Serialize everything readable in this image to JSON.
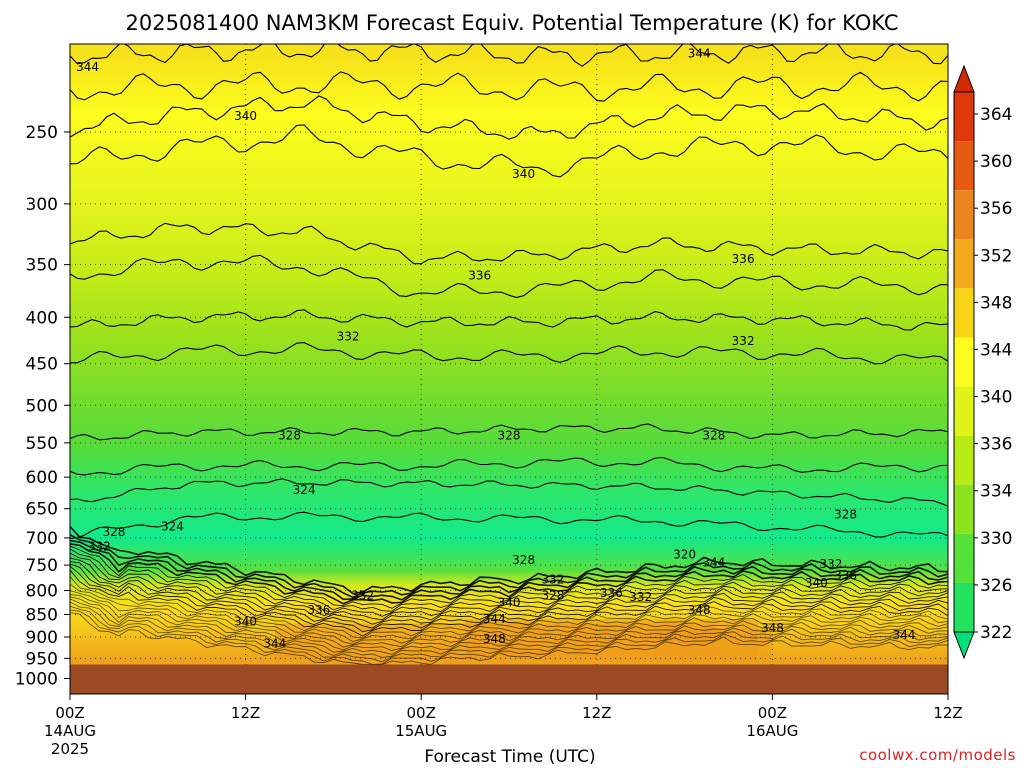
{
  "chart_data": {
    "type": "contour",
    "title": "2025081400 NAM3KM Forecast Equiv. Potential Temperature (K) for KOKC",
    "xlabel": "Forecast Time (UTC)",
    "ylabel": "",
    "x_ticks": [
      {
        "hour": 0,
        "label": "00Z",
        "sub": "14AUG",
        "sub2": "2025"
      },
      {
        "hour": 12,
        "label": "12Z",
        "sub": "",
        "sub2": ""
      },
      {
        "hour": 24,
        "label": "00Z",
        "sub": "15AUG",
        "sub2": ""
      },
      {
        "hour": 36,
        "label": "12Z",
        "sub": "",
        "sub2": ""
      },
      {
        "hour": 48,
        "label": "00Z",
        "sub": "16AUG",
        "sub2": ""
      },
      {
        "hour": 60,
        "label": "12Z",
        "sub": "",
        "sub2": ""
      }
    ],
    "xlim": [
      0,
      60
    ],
    "y_ticks": [
      250,
      300,
      350,
      400,
      450,
      500,
      550,
      600,
      650,
      700,
      750,
      800,
      850,
      900,
      950,
      1000
    ],
    "ylim": [
      1040,
      200
    ],
    "y_scale": "log-pressure",
    "colorbar": {
      "ticks": [
        322,
        326,
        330,
        334,
        336,
        340,
        344,
        348,
        352,
        356,
        360,
        364
      ],
      "colors": [
        "#00e07a",
        "#22e25e",
        "#56e03a",
        "#8de21e",
        "#b8ea14",
        "#dff21a",
        "#fdfd1e",
        "#f8d416",
        "#f2aa1c",
        "#ec8420",
        "#e65a12",
        "#e0380a",
        "#d42a00"
      ]
    },
    "contours": [
      {
        "level": 344,
        "pressure": [
          206,
          204,
          203,
          204,
          206,
          205,
          204,
          205
        ],
        "hours": [
          0,
          8,
          16,
          24,
          32,
          40,
          48,
          60
        ]
      },
      {
        "level": 340,
        "pressure": [
          248,
          238,
          232,
          245,
          252,
          240,
          236,
          244
        ],
        "hours": [
          0,
          8,
          16,
          24,
          32,
          40,
          48,
          60
        ]
      },
      {
        "level": 336,
        "pressure": [
          330,
          318,
          322,
          345,
          342,
          332,
          336,
          340
        ],
        "hours": [
          0,
          8,
          16,
          24,
          32,
          40,
          48,
          60
        ]
      },
      {
        "level": 332,
        "pressure": [
          410,
          400,
          398,
          405,
          405,
          400,
          402,
          410
        ],
        "hours": [
          0,
          8,
          16,
          24,
          32,
          40,
          48,
          60
        ]
      },
      {
        "level": 328,
        "pressure": [
          545,
          535,
          535,
          535,
          530,
          530,
          540,
          535
        ],
        "hours": [
          0,
          8,
          16,
          24,
          32,
          40,
          48,
          60
        ]
      },
      {
        "level": 324,
        "pressure": [
          640,
          610,
          608,
          610,
          612,
          615,
          625,
          640
        ],
        "hours": [
          0,
          8,
          16,
          24,
          32,
          40,
          48,
          60
        ]
      }
    ],
    "contour_labels": [
      {
        "text": "344",
        "hour": 1.2,
        "p": 212
      },
      {
        "text": "344",
        "hour": 43,
        "p": 205
      },
      {
        "text": "340",
        "hour": 12,
        "p": 240
      },
      {
        "text": "340",
        "hour": 31,
        "p": 278
      },
      {
        "text": "336",
        "hour": 28,
        "p": 360
      },
      {
        "text": "336",
        "hour": 46,
        "p": 345
      },
      {
        "text": "332",
        "hour": 19,
        "p": 420
      },
      {
        "text": "332",
        "hour": 46,
        "p": 425
      },
      {
        "text": "328",
        "hour": 15,
        "p": 540
      },
      {
        "text": "328",
        "hour": 30,
        "p": 540
      },
      {
        "text": "328",
        "hour": 44,
        "p": 540
      },
      {
        "text": "328",
        "hour": 53,
        "p": 660
      },
      {
        "text": "324",
        "hour": 16,
        "p": 620
      },
      {
        "text": "324",
        "hour": 7,
        "p": 680
      },
      {
        "text": "328",
        "hour": 3,
        "p": 690
      },
      {
        "text": "332",
        "hour": 2,
        "p": 715
      },
      {
        "text": "320",
        "hour": 42,
        "p": 730
      },
      {
        "text": "328",
        "hour": 31,
        "p": 740
      },
      {
        "text": "332",
        "hour": 33,
        "p": 778
      },
      {
        "text": "344",
        "hour": 44,
        "p": 745
      },
      {
        "text": "332",
        "hour": 52,
        "p": 748
      },
      {
        "text": "336",
        "hour": 53,
        "p": 770
      },
      {
        "text": "340",
        "hour": 51,
        "p": 785
      },
      {
        "text": "336",
        "hour": 37,
        "p": 805
      },
      {
        "text": "332",
        "hour": 39,
        "p": 813
      },
      {
        "text": "328",
        "hour": 33,
        "p": 810
      },
      {
        "text": "340",
        "hour": 30,
        "p": 825
      },
      {
        "text": "332",
        "hour": 20,
        "p": 810
      },
      {
        "text": "336",
        "hour": 17,
        "p": 840
      },
      {
        "text": "344",
        "hour": 29,
        "p": 860
      },
      {
        "text": "348",
        "hour": 43,
        "p": 840
      },
      {
        "text": "348",
        "hour": 48,
        "p": 880
      },
      {
        "text": "340",
        "hour": 12,
        "p": 865
      },
      {
        "text": "344",
        "hour": 14,
        "p": 915
      },
      {
        "text": "348",
        "hour": 29,
        "p": 905
      },
      {
        "text": "344",
        "hour": 57,
        "p": 895
      }
    ],
    "ground_pressure": 965
  },
  "credit": "coolwx.com/models"
}
